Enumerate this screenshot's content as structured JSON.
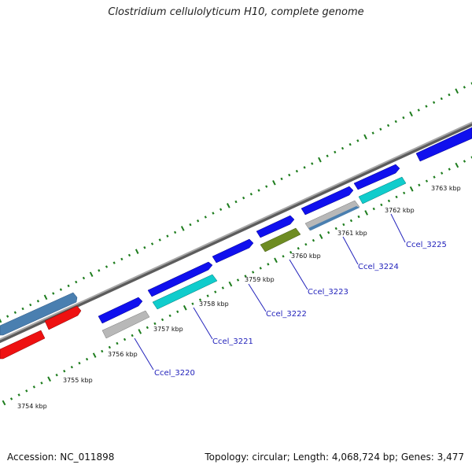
{
  "title": "Clostridium cellulolyticum H10, complete genome",
  "footer": {
    "accession": "Accession: NC_011898",
    "summary": "Topology: circular; Length: 4,068,724 bp; Genes: 3,477"
  },
  "colors": {
    "backbone": "#8a8a8a",
    "tick": "#1e7d1e",
    "label": "#2222bb",
    "blue": "#1010ee",
    "cyan": "#10cccc",
    "gray": "#b8b8b8",
    "steel": "#4a7fb0",
    "red": "#ee1111",
    "olive": "#6e8c22"
  },
  "kbp_labels": [
    "3754 kbp",
    "3755 kbp",
    "3756 kbp",
    "3757 kbp",
    "3758 kbp",
    "3759 kbp",
    "3760 kbp",
    "3761 kbp",
    "3762 kbp",
    "3763 kbp"
  ],
  "gene_labels": [
    "Ccel_3220",
    "Ccel_3221",
    "Ccel_3222",
    "Ccel_3223",
    "Ccel_3224",
    "Ccel_3225"
  ]
}
